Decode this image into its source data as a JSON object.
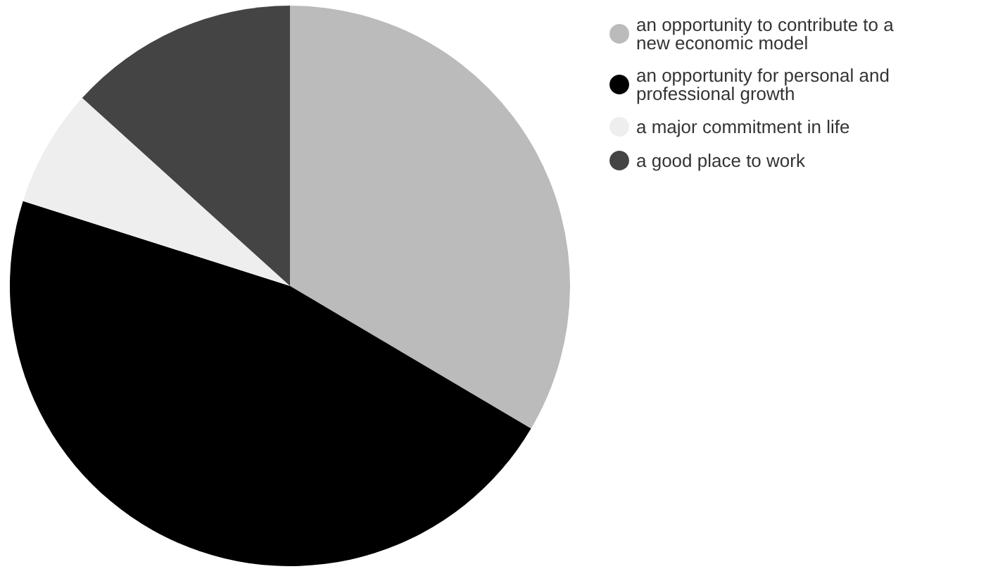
{
  "chart_data": {
    "type": "pie",
    "categories": [
      "an opportunity to contribute to a new economic model",
      "an opportunity for personal and professional growth",
      "a major commitment in life",
      "a good place to work"
    ],
    "values": [
      33.5,
      46.4,
      6.8,
      13.3
    ],
    "colors": [
      "#bbbbbb",
      "#000000",
      "#eeeeee",
      "#444444"
    ],
    "legend": "top right"
  }
}
